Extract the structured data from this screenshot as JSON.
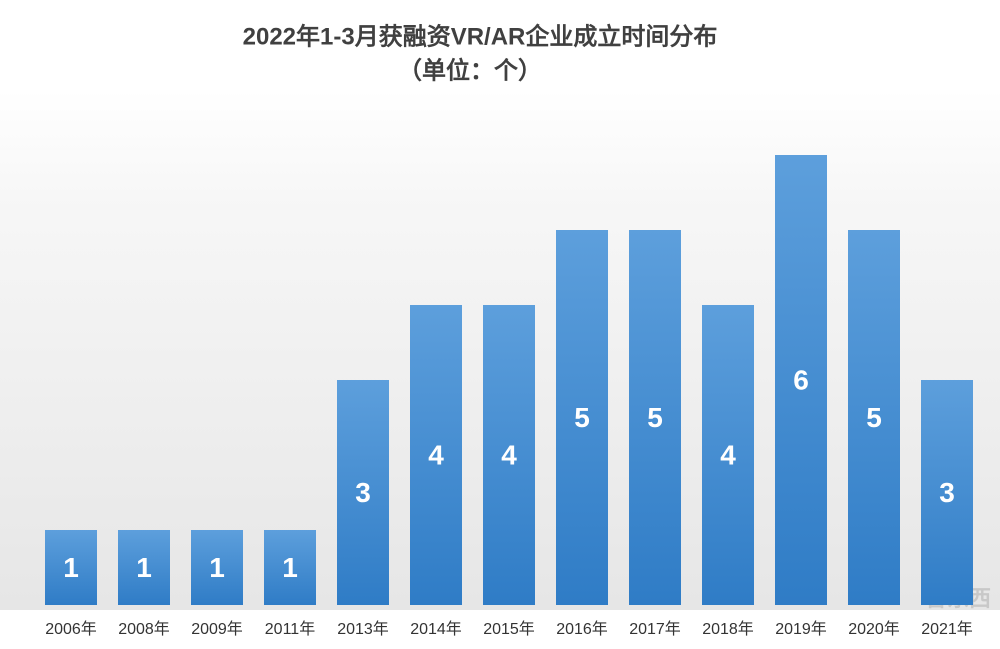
{
  "chart_data": {
    "type": "bar",
    "title": "2022年1-3月获融资VR/AR企业成立时间分布",
    "subtitle": "（单位：个）",
    "categories": [
      "2006年",
      "2008年",
      "2009年",
      "2011年",
      "2013年",
      "2014年",
      "2015年",
      "2016年",
      "2017年",
      "2018年",
      "2019年",
      "2020年",
      "2021年"
    ],
    "values": [
      1,
      1,
      1,
      1,
      3,
      4,
      4,
      5,
      5,
      4,
      6,
      5,
      3
    ],
    "color": "#4a8fd4",
    "watermark": "智东西"
  }
}
